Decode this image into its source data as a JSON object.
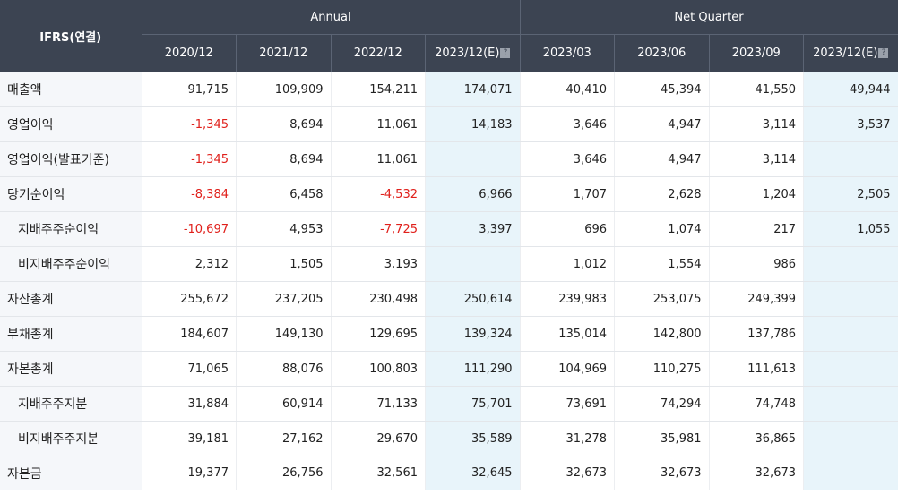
{
  "header": {
    "corner_label": "IFRS(연결)",
    "group_annual": "Annual",
    "group_quarter": "Net Quarter",
    "annual_periods": [
      "2020/12",
      "2021/12",
      "2022/12",
      "2023/12(E)"
    ],
    "quarter_periods": [
      "2023/03",
      "2023/06",
      "2023/09",
      "2023/12(E)"
    ],
    "estimate_icon": "info-icon"
  },
  "rows": [
    {
      "label": "매출액",
      "values": [
        "91,715",
        "109,909",
        "154,211",
        "174,071",
        "40,410",
        "45,394",
        "41,550",
        "49,944"
      ]
    },
    {
      "label": "영업이익",
      "values": [
        "-1,345",
        "8,694",
        "11,061",
        "14,183",
        "3,646",
        "4,947",
        "3,114",
        "3,537"
      ]
    },
    {
      "label": "영업이익(발표기준)",
      "values": [
        "-1,345",
        "8,694",
        "11,061",
        "",
        "3,646",
        "4,947",
        "3,114",
        ""
      ]
    },
    {
      "label": "당기순이익",
      "values": [
        "-8,384",
        "6,458",
        "-4,532",
        "6,966",
        "1,707",
        "2,628",
        "1,204",
        "2,505"
      ]
    },
    {
      "label": "지배주주순이익",
      "values": [
        "-10,697",
        "4,953",
        "-7,725",
        "3,397",
        "696",
        "1,074",
        "217",
        "1,055"
      ]
    },
    {
      "label": "비지배주주순이익",
      "values": [
        "2,312",
        "1,505",
        "3,193",
        "",
        "1,012",
        "1,554",
        "986",
        ""
      ]
    },
    {
      "label": "자산총계",
      "values": [
        "255,672",
        "237,205",
        "230,498",
        "250,614",
        "239,983",
        "253,075",
        "249,399",
        ""
      ]
    },
    {
      "label": "부채총계",
      "values": [
        "184,607",
        "149,130",
        "129,695",
        "139,324",
        "135,014",
        "142,800",
        "137,786",
        ""
      ]
    },
    {
      "label": "자본총계",
      "values": [
        "71,065",
        "88,076",
        "100,803",
        "111,290",
        "104,969",
        "110,275",
        "111,613",
        ""
      ]
    },
    {
      "label": "지배주주지분",
      "values": [
        "31,884",
        "60,914",
        "71,133",
        "75,701",
        "73,691",
        "74,294",
        "74,748",
        ""
      ]
    },
    {
      "label": "비지배주주지분",
      "values": [
        "39,181",
        "27,162",
        "29,670",
        "35,589",
        "31,278",
        "35,981",
        "36,865",
        ""
      ]
    },
    {
      "label": "자본금",
      "values": [
        "19,377",
        "26,756",
        "32,561",
        "32,645",
        "32,673",
        "32,673",
        "32,673",
        ""
      ]
    }
  ],
  "colors": {
    "header_bg": "#3c4452",
    "label_bg": "#f5f7fa",
    "estimate_bg": "#e8f4fa",
    "negative": "#e0201b"
  }
}
